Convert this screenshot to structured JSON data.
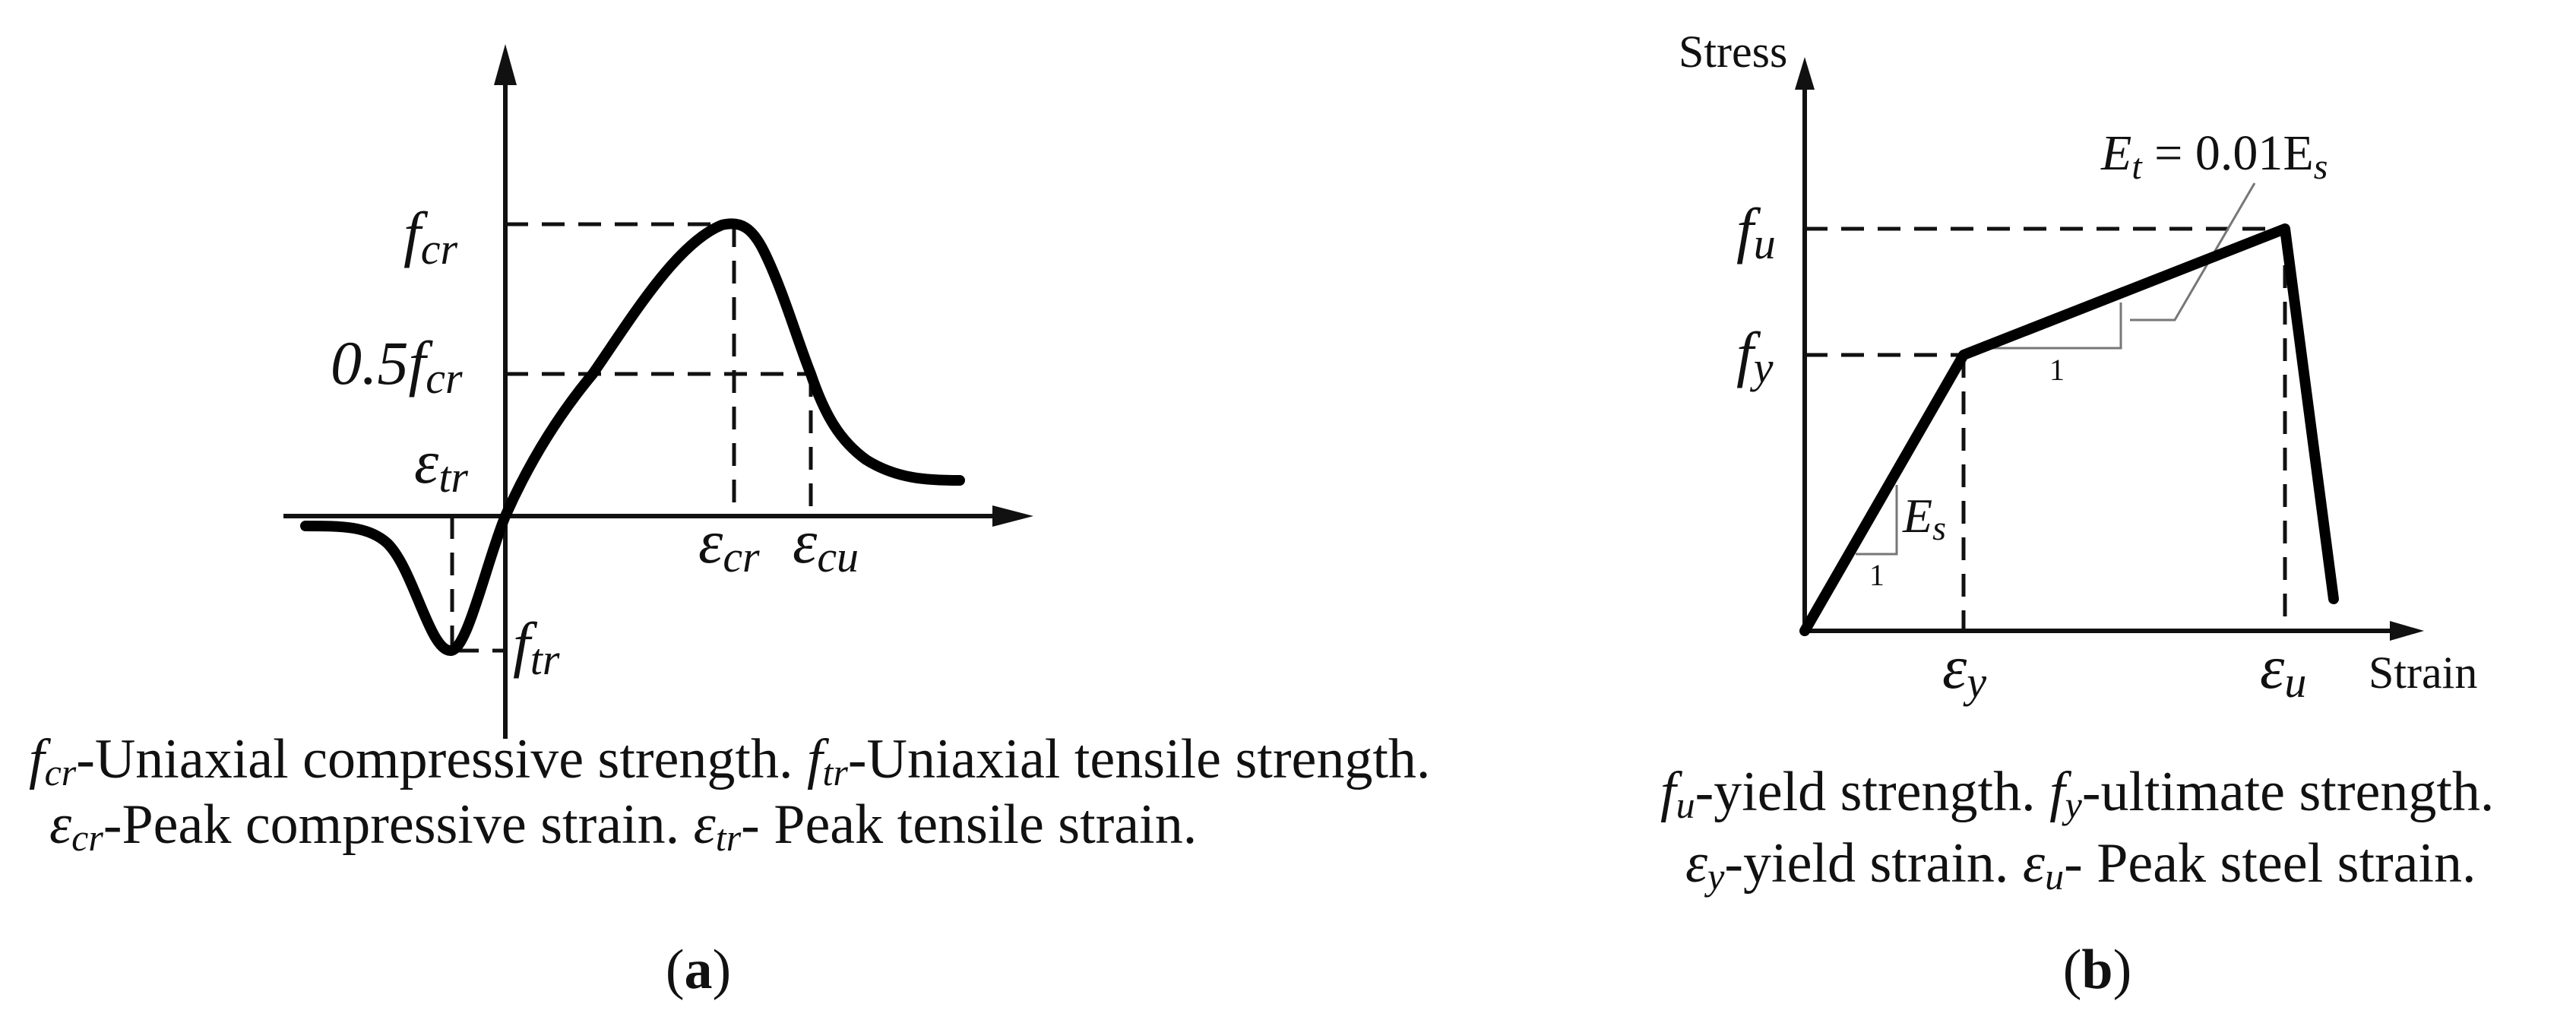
{
  "panel_a": {
    "labels": {
      "fcr": {
        "main": "f",
        "sub": "cr"
      },
      "half_fcr": {
        "main": "0.5f",
        "sub": "cr"
      },
      "eps_tr": {
        "main": "ε",
        "sub": "tr"
      },
      "eps_cr": {
        "main": "ε",
        "sub": "cr"
      },
      "eps_cu": {
        "main": "ε",
        "sub": "cu"
      },
      "ftr": {
        "main": "f",
        "sub": "tr"
      }
    },
    "caption": {
      "line1": [
        {
          "sym": "f",
          "sub": "cr",
          "text": "-Uniaxial compressive strength. "
        },
        {
          "sym": "f",
          "sub": "tr",
          "text": "-Uniaxial tensile strength."
        }
      ],
      "line2": [
        {
          "sym": "ε",
          "sub": "cr",
          "text": "-Peak compressive strain.  "
        },
        {
          "sym": "ε",
          "sub": "tr",
          "text": "- Peak tensile strain."
        }
      ]
    },
    "panel_label_open": "(",
    "panel_label": "a",
    "panel_label_close": ")"
  },
  "panel_b": {
    "y_axis_label": "Stress",
    "x_axis_label": "Strain",
    "labels": {
      "fu": {
        "main": "f",
        "sub": "u"
      },
      "fy": {
        "main": "f",
        "sub": "y"
      },
      "eps_y": {
        "main": "ε",
        "sub": "y"
      },
      "eps_u": {
        "main": "ε",
        "sub": "u"
      },
      "Es": {
        "main": "E",
        "sub": "s"
      },
      "slope_one_a": "1",
      "slope_one_b": "1",
      "Et": {
        "main": "E",
        "sub": "t",
        "mid": " = 0.01E",
        "sub2": "s"
      }
    },
    "caption": {
      "line1": [
        {
          "sym": "f",
          "sub": "u",
          "text": "-yield strength. "
        },
        {
          "sym": "f",
          "sub": "y",
          "text": "-ultimate strength."
        }
      ],
      "line2": [
        {
          "sym": "ε",
          "sub": "y",
          "text": "-yield strain.  "
        },
        {
          "sym": "ε",
          "sub": "u",
          "text": "- Peak steel strain."
        }
      ]
    },
    "panel_label_open": "(",
    "panel_label": "b",
    "panel_label_close": ")"
  }
}
